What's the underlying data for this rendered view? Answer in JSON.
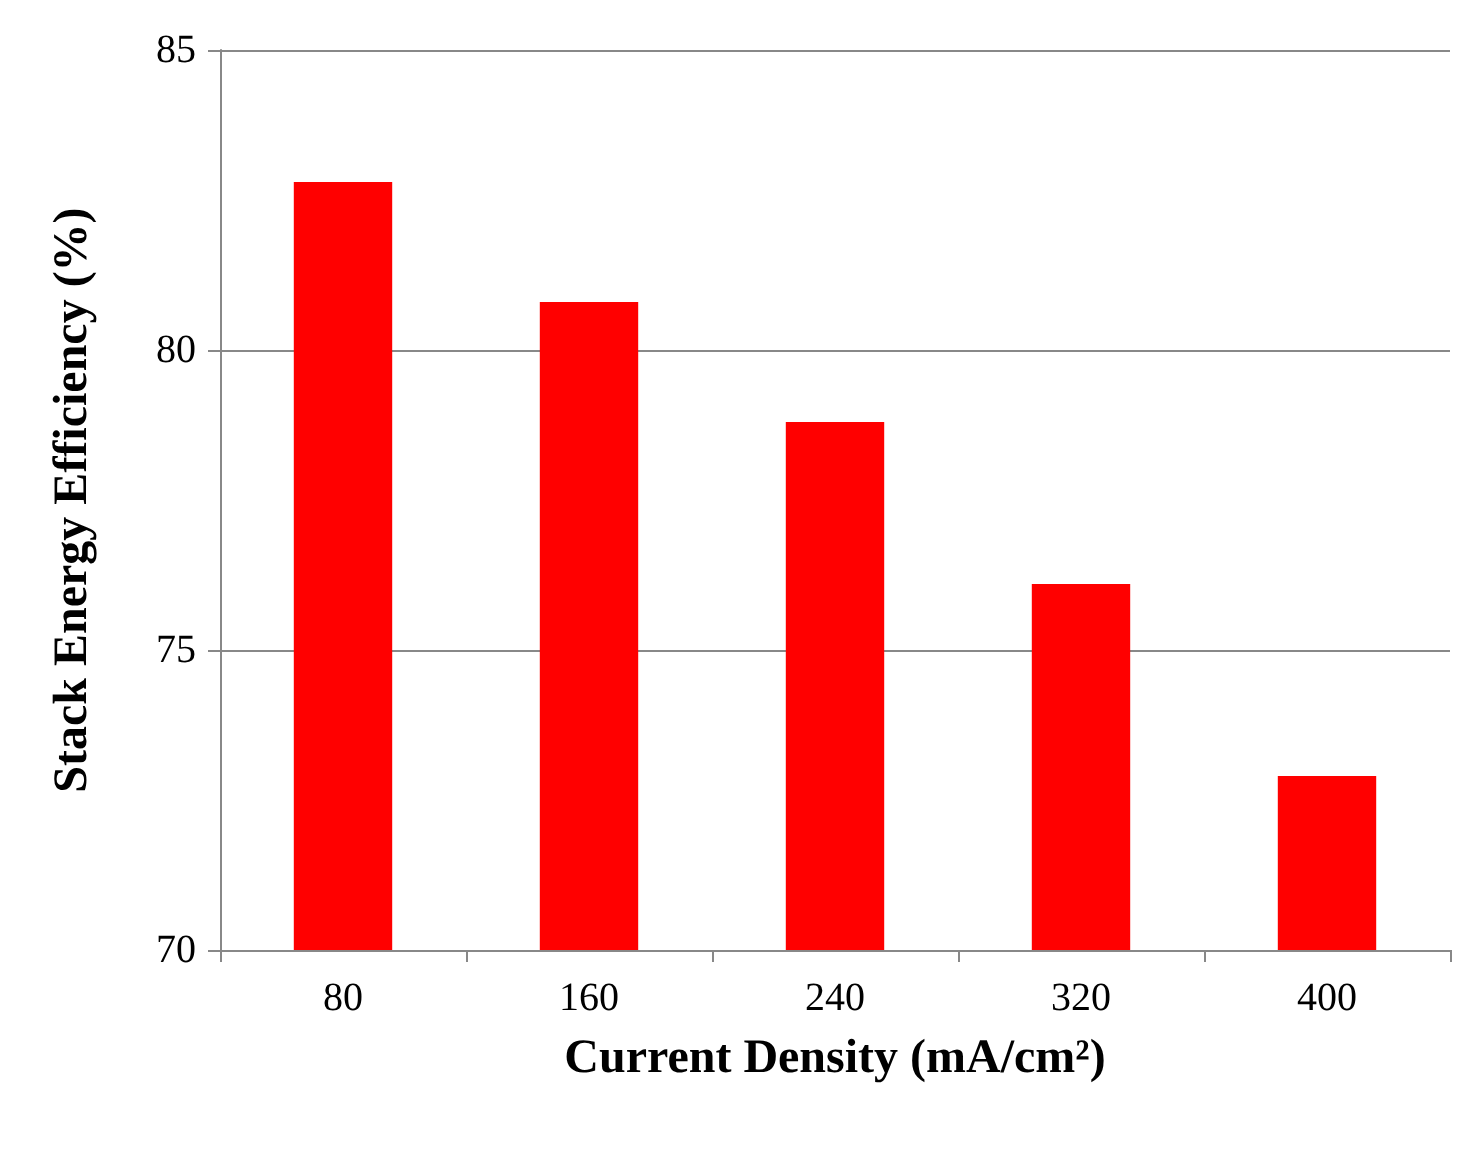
{
  "chart_data": {
    "type": "bar",
    "xlabel": "Current Density (mA/cm²)",
    "ylabel": "Stack Energy Efficiency (%)",
    "categories": [
      "80",
      "160",
      "240",
      "320",
      "400"
    ],
    "values": [
      82.8,
      80.8,
      78.8,
      76.1,
      72.9
    ],
    "color": "#ff0000",
    "ylim": [
      70,
      85
    ],
    "yticks": [
      70,
      75,
      80,
      85
    ],
    "grid": "y"
  }
}
